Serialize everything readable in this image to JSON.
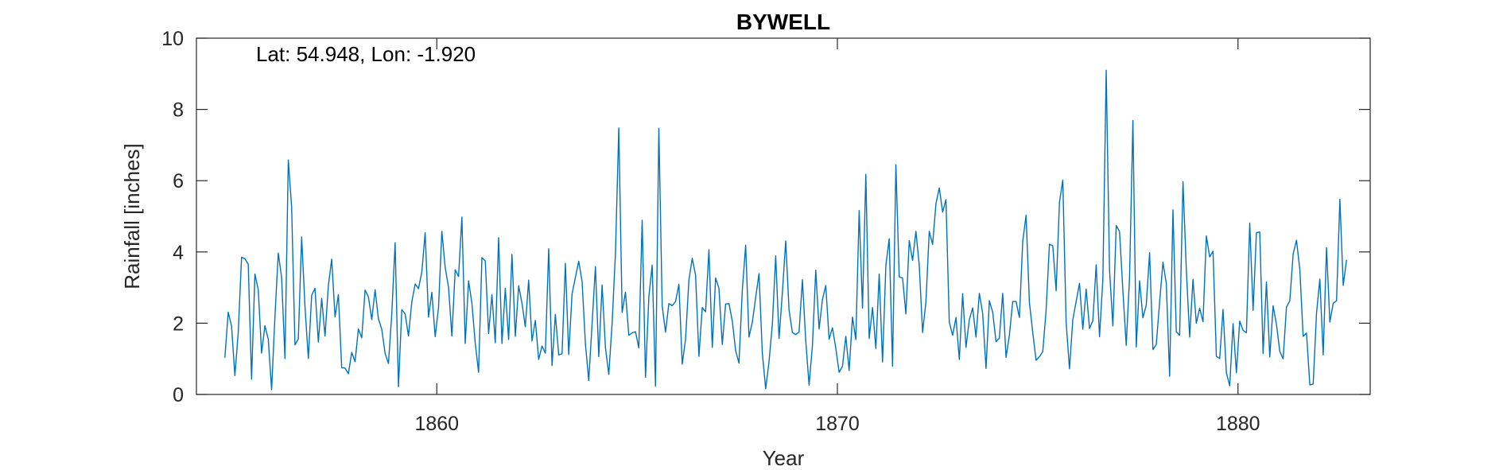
{
  "chart_data": {
    "type": "line",
    "title": "BYWELL",
    "annotation": "Lat: 54.948, Lon: -1.920",
    "xlabel": "Year",
    "ylabel": "Rainfall [inches]",
    "xlim": [
      1854,
      1883.3
    ],
    "ylim": [
      0,
      10
    ],
    "xticks": [
      1860,
      1870,
      1880
    ],
    "yticks": [
      0,
      2,
      4,
      6,
      8,
      10
    ],
    "grid": false,
    "line_color": "#0072BD",
    "series": [
      {
        "x_start": 1854.71,
        "x_step": 0.0833333,
        "values": [
          1.03,
          2.31,
          1.92,
          0.53,
          1.73,
          3.85,
          3.81,
          3.66,
          0.43,
          3.38,
          2.94,
          1.16,
          1.93,
          1.55,
          0.13,
          2.19,
          3.97,
          3.28,
          1.01,
          6.58,
          5.26,
          1.39,
          1.56,
          4.42,
          2.46,
          1.01,
          2.78,
          2.98,
          1.47,
          2.7,
          1.64,
          3.05,
          3.8,
          2.18,
          2.8,
          0.75,
          0.74,
          0.58,
          1.18,
          0.92,
          1.84,
          1.59,
          2.93,
          2.74,
          2.1,
          2.94,
          2.12,
          1.83,
          1.15,
          0.87,
          2.26,
          4.26,
          0.22,
          2.38,
          2.26,
          1.64,
          2.6,
          3.1,
          2.97,
          3.44,
          4.54,
          2.17,
          2.87,
          1.62,
          2.44,
          4.58,
          3.56,
          3.01,
          1.64,
          3.5,
          3.31,
          4.98,
          1.43,
          3.19,
          2.56,
          1.44,
          0.62,
          3.84,
          3.75,
          1.71,
          2.8,
          1.45,
          4.4,
          1.43,
          2.98,
          1.54,
          3.93,
          1.63,
          3.05,
          2.56,
          1.9,
          3.21,
          1.5,
          2.08,
          0.98,
          1.36,
          1.16,
          4.09,
          0.81,
          2.25,
          1.11,
          1.14,
          3.68,
          1.12,
          2.82,
          3.29,
          3.74,
          3.17,
          1.42,
          0.39,
          1.98,
          3.59,
          1.06,
          3.07,
          1.32,
          0.56,
          2.0,
          3.97,
          7.48,
          2.3,
          2.87,
          1.66,
          1.73,
          1.76,
          1.31,
          4.89,
          0.48,
          2.74,
          3.63,
          0.23,
          7.47,
          2.48,
          1.75,
          2.55,
          2.49,
          2.61,
          3.09,
          0.85,
          1.55,
          3.21,
          3.82,
          3.35,
          1.07,
          2.44,
          2.32,
          4.06,
          1.32,
          3.27,
          2.98,
          1.4,
          2.54,
          2.55,
          2.06,
          1.23,
          0.88,
          2.93,
          4.19,
          1.61,
          2.03,
          2.72,
          3.39,
          1.15,
          0.16,
          0.92,
          1.97,
          3.89,
          1.57,
          2.85,
          4.31,
          2.37,
          1.74,
          1.68,
          1.75,
          3.22,
          1.51,
          0.26,
          1.37,
          3.49,
          1.84,
          2.66,
          3.06,
          1.55,
          1.87,
          1.3,
          0.62,
          0.79,
          1.63,
          0.67,
          2.17,
          1.54,
          5.16,
          2.42,
          6.18,
          1.57,
          2.44,
          1.29,
          3.38,
          0.91,
          3.62,
          4.37,
          0.79,
          6.45,
          3.3,
          3.27,
          2.26,
          4.32,
          3.76,
          4.58,
          3.63,
          1.74,
          2.6,
          4.58,
          4.21,
          5.35,
          5.8,
          5.12,
          5.47,
          2.03,
          1.66,
          2.16,
          0.98,
          2.83,
          1.32,
          2.1,
          2.43,
          1.61,
          2.84,
          2.27,
          0.73,
          2.63,
          2.31,
          1.48,
          1.58,
          2.84,
          1.04,
          1.66,
          2.61,
          2.61,
          2.16,
          4.3,
          5.03,
          2.58,
          1.74,
          0.96,
          1.06,
          1.2,
          2.36,
          4.22,
          4.17,
          2.91,
          5.39,
          6.02,
          2.03,
          0.72,
          2.1,
          2.61,
          3.12,
          1.83,
          2.96,
          1.85,
          2.07,
          3.64,
          1.62,
          3.23,
          9.1,
          3.5,
          1.92,
          4.74,
          4.57,
          2.91,
          1.38,
          3.3,
          7.69,
          1.33,
          3.19,
          2.15,
          2.51,
          3.98,
          1.26,
          1.4,
          2.59,
          3.71,
          3.12,
          0.51,
          5.18,
          1.76,
          1.66,
          5.97,
          3.51,
          1.61,
          3.23,
          2.0,
          2.42,
          2.04,
          4.45,
          3.86,
          4.02,
          1.07,
          1.01,
          2.39,
          0.61,
          0.24,
          1.99,
          0.61,
          2.06,
          1.8,
          1.73,
          4.81,
          2.36,
          4.54,
          4.56,
          1.15,
          3.16,
          1.05,
          2.49,
          1.97,
          1.21,
          1.0,
          2.45,
          2.63,
          3.94,
          4.33,
          3.51,
          1.63,
          1.72,
          0.27,
          0.29,
          2.28,
          3.24,
          1.11,
          4.12,
          2.03,
          2.56,
          2.63,
          5.48,
          3.06,
          3.78
        ]
      }
    ]
  }
}
